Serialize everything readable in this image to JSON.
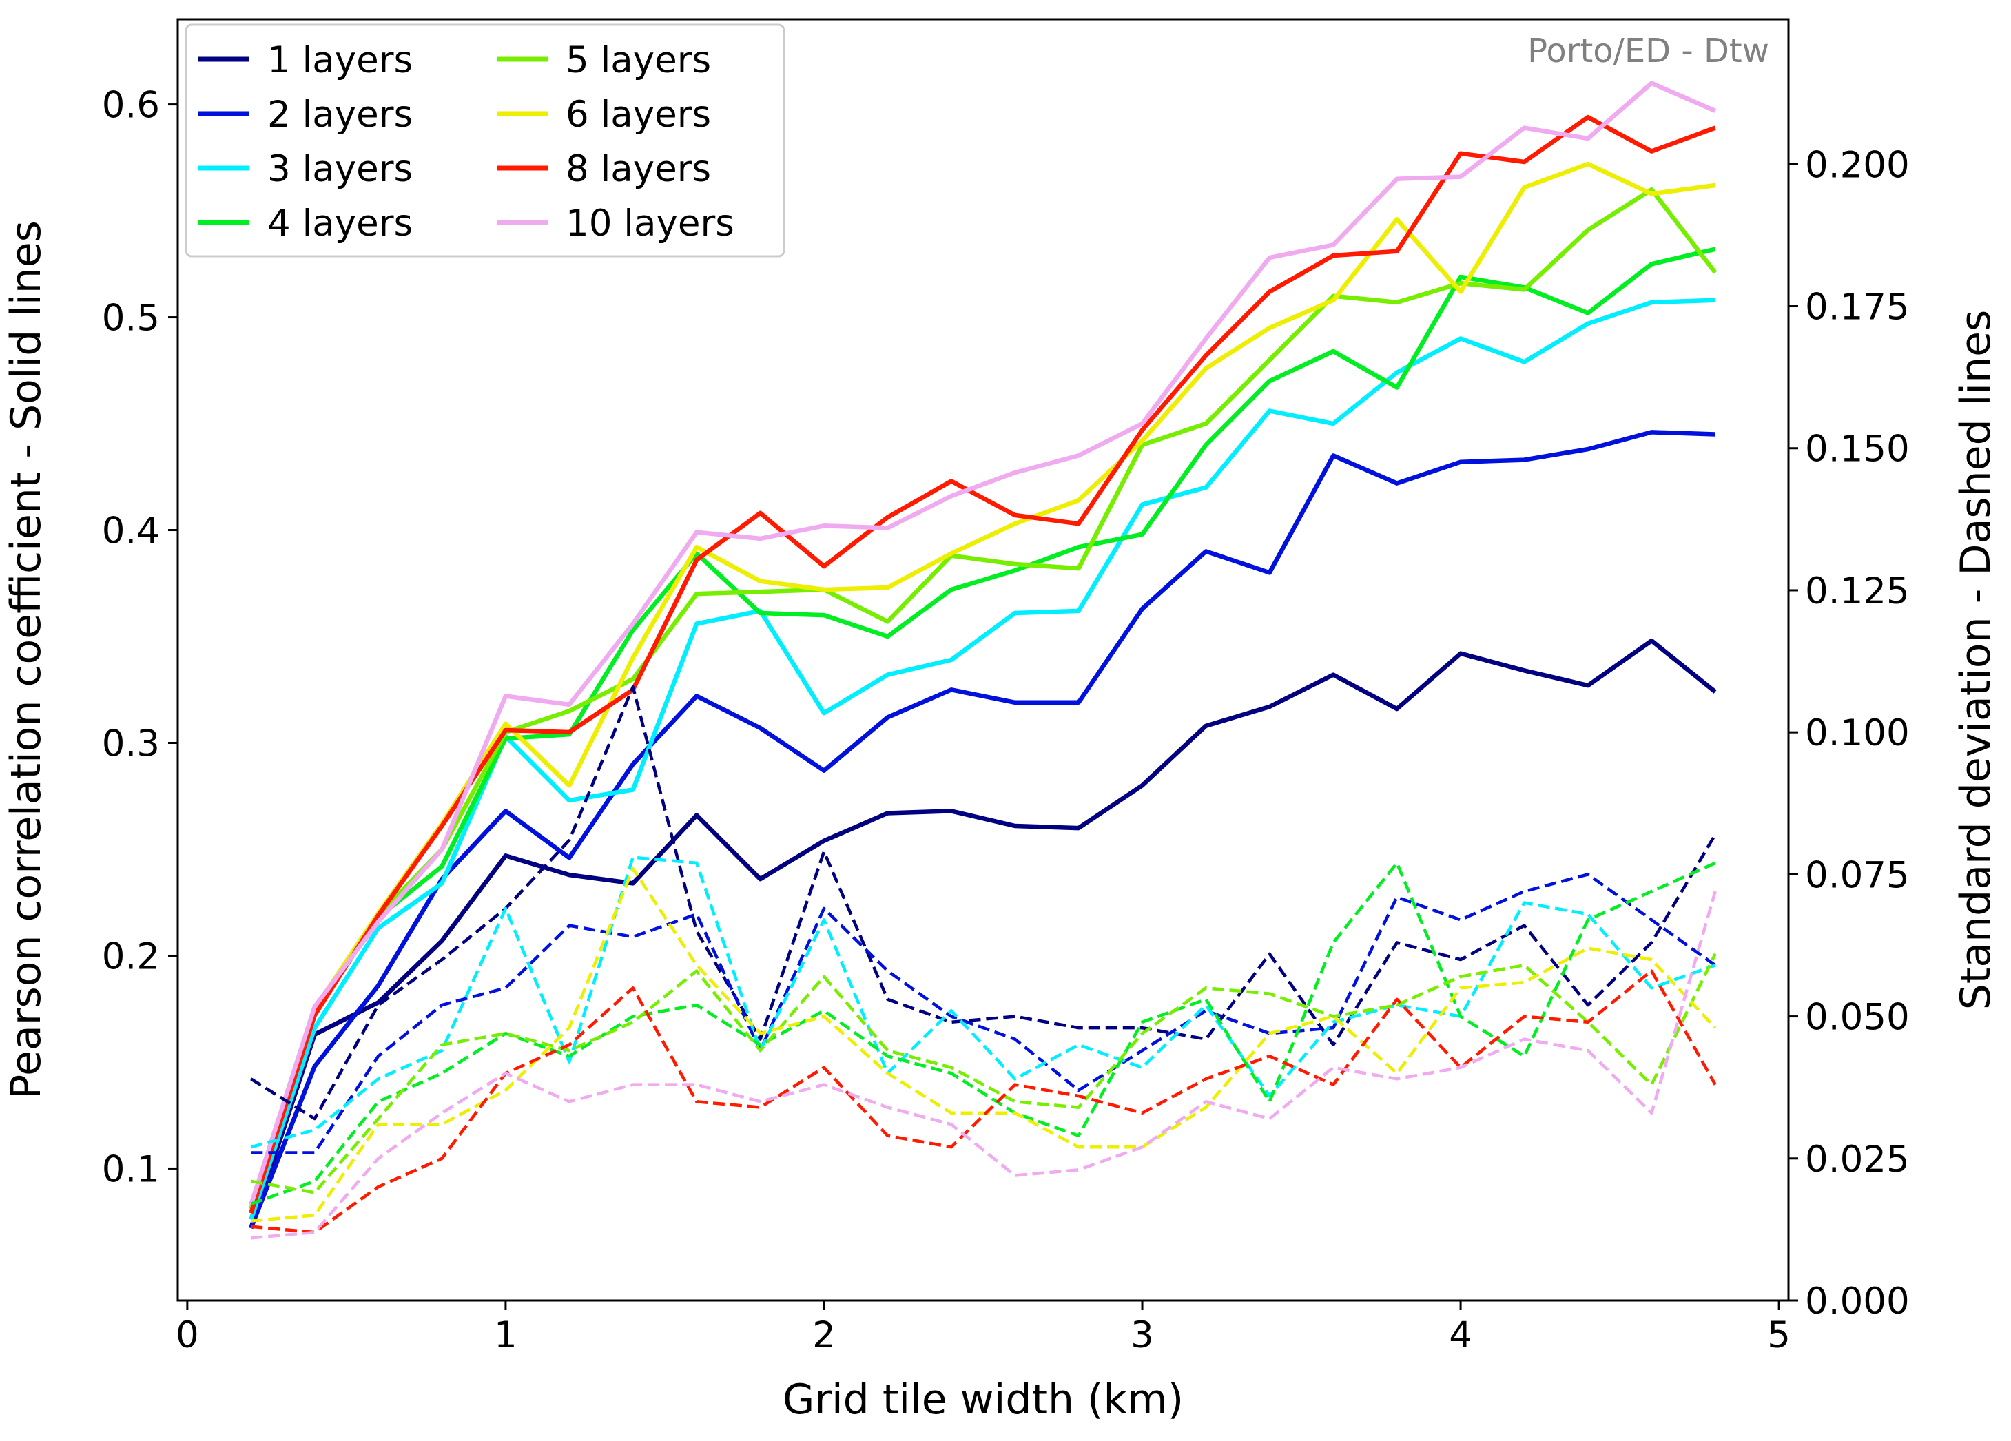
{
  "chart_data": {
    "type": "line",
    "annotation": "Porto/ED - Dtw",
    "xlabel": "Grid tile width (km)",
    "ylabel": "Pearson correlation coefficient - Solid lines",
    "y2label": "Standard deviation - Dashed lines",
    "xlim": [
      -0.03,
      5.03
    ],
    "ylim": [
      0.038,
      0.64
    ],
    "y2lim": [
      0.0,
      0.2255
    ],
    "xticks": [
      0,
      1,
      2,
      3,
      4,
      5
    ],
    "yticks": [
      0.1,
      0.2,
      0.3,
      0.4,
      0.5,
      0.6
    ],
    "y2ticks": [
      0.0,
      0.025,
      0.05,
      0.075,
      0.1,
      0.125,
      0.15,
      0.175,
      0.2
    ],
    "xtick_labels": [
      "0",
      "1",
      "2",
      "3",
      "4",
      "5"
    ],
    "ytick_labels": [
      "0.1",
      "0.2",
      "0.3",
      "0.4",
      "0.5",
      "0.6"
    ],
    "y2tick_labels": [
      "0.000",
      "0.025",
      "0.050",
      "0.075",
      "0.100",
      "0.125",
      "0.150",
      "0.175",
      "0.200"
    ],
    "grid": false,
    "legend": {
      "placement": "top-left",
      "columns": 2
    },
    "x": [
      0.2,
      0.4,
      0.6,
      0.8,
      1.0,
      1.2,
      1.4,
      1.6,
      1.8,
      2.0,
      2.2,
      2.4,
      2.6,
      2.8,
      3.0,
      3.2,
      3.4,
      3.6,
      3.8,
      4.0,
      4.2,
      4.4,
      4.6,
      4.8
    ],
    "series": [
      {
        "name": "1 layers",
        "color": "#000080",
        "values": [
          0.072,
          0.163,
          0.178,
          0.207,
          0.247,
          0.238,
          0.234,
          0.266,
          0.236,
          0.254,
          0.267,
          0.268,
          0.261,
          0.26,
          0.28,
          0.308,
          0.317,
          0.332,
          0.316,
          0.342,
          0.334,
          0.327,
          0.348,
          0.324
        ],
        "std": [
          0.039,
          0.032,
          0.052,
          0.06,
          0.069,
          0.081,
          0.108,
          0.065,
          0.046,
          0.079,
          0.053,
          0.049,
          0.05,
          0.048,
          0.048,
          0.046,
          0.061,
          0.045,
          0.063,
          0.06,
          0.066,
          0.052,
          0.063,
          0.082
        ]
      },
      {
        "name": "2 layers",
        "color": "#0010dd",
        "values": [
          0.072,
          0.148,
          0.186,
          0.236,
          0.268,
          0.246,
          0.29,
          0.322,
          0.307,
          0.287,
          0.312,
          0.325,
          0.319,
          0.319,
          0.363,
          0.39,
          0.38,
          0.435,
          0.422,
          0.432,
          0.433,
          0.438,
          0.446,
          0.445
        ],
        "std": [
          0.026,
          0.026,
          0.043,
          0.052,
          0.055,
          0.066,
          0.064,
          0.068,
          0.044,
          0.069,
          0.058,
          0.05,
          0.046,
          0.037,
          0.044,
          0.051,
          0.047,
          0.048,
          0.071,
          0.067,
          0.072,
          0.075,
          0.067,
          0.059
        ]
      },
      {
        "name": "3 layers",
        "color": "#00eeff",
        "values": [
          0.076,
          0.166,
          0.213,
          0.234,
          0.303,
          0.273,
          0.278,
          0.356,
          0.362,
          0.314,
          0.332,
          0.339,
          0.361,
          0.362,
          0.412,
          0.42,
          0.456,
          0.45,
          0.474,
          0.49,
          0.479,
          0.497,
          0.507,
          0.508
        ],
        "std": [
          0.027,
          0.03,
          0.039,
          0.044,
          0.069,
          0.042,
          0.078,
          0.077,
          0.044,
          0.067,
          0.04,
          0.051,
          0.039,
          0.045,
          0.041,
          0.052,
          0.036,
          0.049,
          0.052,
          0.05,
          0.07,
          0.068,
          0.055,
          0.059
        ]
      },
      {
        "name": "4 layers",
        "color": "#00ee22",
        "values": [
          0.079,
          0.173,
          0.218,
          0.242,
          0.302,
          0.304,
          0.353,
          0.389,
          0.361,
          0.36,
          0.35,
          0.372,
          0.381,
          0.392,
          0.398,
          0.44,
          0.47,
          0.484,
          0.467,
          0.519,
          0.514,
          0.502,
          0.525,
          0.532
        ],
        "std": [
          0.017,
          0.021,
          0.035,
          0.04,
          0.047,
          0.043,
          0.05,
          0.052,
          0.045,
          0.051,
          0.043,
          0.04,
          0.033,
          0.029,
          0.049,
          0.053,
          0.035,
          0.063,
          0.077,
          0.05,
          0.043,
          0.067,
          0.072,
          0.077
        ]
      },
      {
        "name": "5 layers",
        "color": "#77ee00",
        "values": [
          0.081,
          0.175,
          0.219,
          0.25,
          0.305,
          0.315,
          0.33,
          0.37,
          0.371,
          0.372,
          0.357,
          0.388,
          0.384,
          0.382,
          0.44,
          0.45,
          0.48,
          0.51,
          0.507,
          0.516,
          0.513,
          0.541,
          0.56,
          0.521
        ],
        "std": [
          0.021,
          0.019,
          0.032,
          0.045,
          0.047,
          0.044,
          0.049,
          0.058,
          0.044,
          0.057,
          0.044,
          0.041,
          0.035,
          0.034,
          0.047,
          0.055,
          0.054,
          0.05,
          0.052,
          0.057,
          0.059,
          0.049,
          0.038,
          0.061
        ]
      },
      {
        "name": "6 layers",
        "color": "#eeee00",
        "values": [
          0.079,
          0.175,
          0.22,
          0.262,
          0.309,
          0.28,
          0.34,
          0.392,
          0.376,
          0.372,
          0.373,
          0.389,
          0.403,
          0.414,
          0.442,
          0.476,
          0.495,
          0.508,
          0.546,
          0.512,
          0.561,
          0.572,
          0.558,
          0.562
        ],
        "std": [
          0.014,
          0.015,
          0.031,
          0.031,
          0.037,
          0.048,
          0.076,
          0.059,
          0.047,
          0.05,
          0.04,
          0.033,
          0.033,
          0.027,
          0.027,
          0.034,
          0.047,
          0.05,
          0.04,
          0.055,
          0.056,
          0.062,
          0.06,
          0.048
        ]
      },
      {
        "name": "8 layers",
        "color": "#ff1a00",
        "values": [
          0.079,
          0.172,
          0.219,
          0.261,
          0.306,
          0.305,
          0.325,
          0.386,
          0.408,
          0.383,
          0.406,
          0.423,
          0.407,
          0.403,
          0.447,
          0.482,
          0.512,
          0.529,
          0.531,
          0.577,
          0.573,
          0.594,
          0.578,
          0.589
        ],
        "std": [
          0.013,
          0.012,
          0.02,
          0.025,
          0.04,
          0.045,
          0.055,
          0.035,
          0.034,
          0.041,
          0.029,
          0.027,
          0.038,
          0.036,
          0.033,
          0.039,
          0.043,
          0.038,
          0.053,
          0.041,
          0.05,
          0.049,
          0.058,
          0.038
        ]
      },
      {
        "name": "10 layers",
        "color": "#f0aaf0",
        "values": [
          0.083,
          0.176,
          0.216,
          0.25,
          0.322,
          0.318,
          0.356,
          0.399,
          0.396,
          0.402,
          0.401,
          0.416,
          0.427,
          0.435,
          0.45,
          0.49,
          0.528,
          0.534,
          0.565,
          0.566,
          0.589,
          0.584,
          0.61,
          0.597
        ],
        "std": [
          0.011,
          0.012,
          0.025,
          0.033,
          0.04,
          0.035,
          0.038,
          0.038,
          0.035,
          0.038,
          0.034,
          0.031,
          0.022,
          0.023,
          0.027,
          0.035,
          0.032,
          0.041,
          0.039,
          0.041,
          0.046,
          0.044,
          0.033,
          0.072
        ]
      }
    ]
  }
}
